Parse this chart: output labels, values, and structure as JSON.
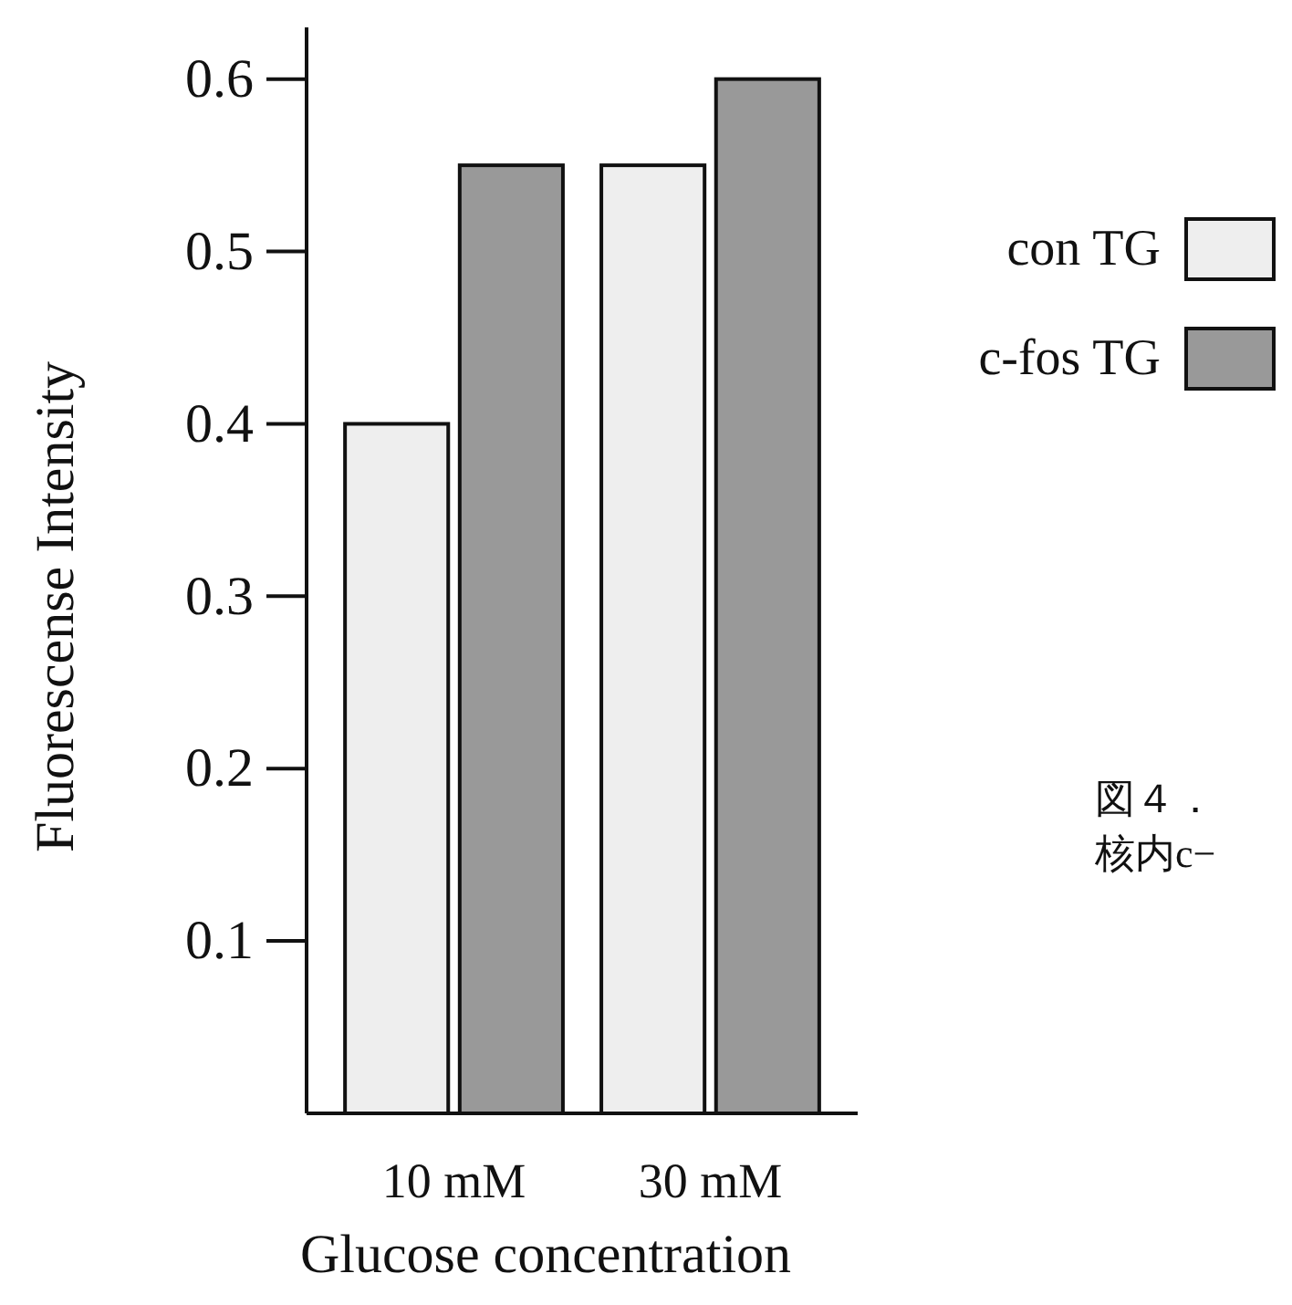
{
  "chart_data": {
    "type": "bar",
    "categories": [
      "10 mM",
      "30 mM"
    ],
    "series": [
      {
        "name": "con TG",
        "color": "#eeeeee",
        "values": [
          0.4,
          0.55
        ]
      },
      {
        "name": "c-fos TG",
        "color": "#999999",
        "values": [
          0.55,
          0.6
        ]
      }
    ],
    "xlabel": "Glucose concentration",
    "ylabel": "Fluorescense Intensity",
    "ylim": [
      0,
      0.63
    ],
    "yticks": [
      0.1,
      0.2,
      0.3,
      0.4,
      0.5,
      0.6
    ],
    "grid": false,
    "legend": "right",
    "annotations": [
      "図４．",
      "核内c−"
    ]
  }
}
